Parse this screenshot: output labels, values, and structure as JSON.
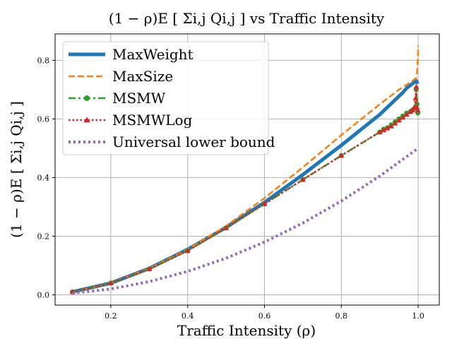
{
  "chart_data": {
    "type": "line",
    "title": "(1 − ρ)E [ Σi,j Qi,j ]  vs Traffic Intensity",
    "xlabel": "Traffic Intensity (ρ)",
    "ylabel": "(1 − ρ)E [ Σi,j Qi,j ]",
    "xlim": [
      0.055,
      1.055
    ],
    "ylim": [
      -0.035,
      0.89
    ],
    "x_ticks": [
      0.2,
      0.4,
      0.6,
      0.8,
      1.0
    ],
    "x_tick_labels": [
      "0.2",
      "0.4",
      "0.6",
      "0.8",
      "1.0"
    ],
    "y_ticks": [
      0.0,
      0.2,
      0.4,
      0.6,
      0.8
    ],
    "y_tick_labels": [
      "0.0",
      "0.2",
      "0.4",
      "0.6",
      "0.8"
    ],
    "grid": true,
    "legend_position": "top-left",
    "series": [
      {
        "name": "MaxWeight",
        "color": "#1f77b4",
        "style": "solid-thick",
        "x": [
          0.1,
          0.2,
          0.3,
          0.4,
          0.5,
          0.6,
          0.7,
          0.8,
          0.9,
          0.92,
          0.94,
          0.96,
          0.97,
          0.98,
          0.985,
          0.99,
          0.993,
          0.995,
          0.997,
          0.999
        ],
        "y": [
          0.01,
          0.04,
          0.09,
          0.155,
          0.23,
          0.315,
          0.41,
          0.51,
          0.615,
          0.64,
          0.665,
          0.69,
          0.705,
          0.715,
          0.72,
          0.725,
          0.728,
          0.73,
          0.725,
          0.72
        ]
      },
      {
        "name": "MaxSize",
        "color": "#ff7f0e",
        "style": "dashed",
        "x": [
          0.1,
          0.2,
          0.3,
          0.4,
          0.5,
          0.6,
          0.7,
          0.8,
          0.9,
          0.95,
          0.98,
          0.99,
          0.995,
          0.997,
          0.999,
          1.0
        ],
        "y": [
          0.01,
          0.04,
          0.09,
          0.155,
          0.235,
          0.33,
          0.435,
          0.545,
          0.65,
          0.7,
          0.725,
          0.735,
          0.74,
          0.76,
          0.8,
          0.85
        ]
      },
      {
        "name": "MSMW",
        "color": "#2ca02c",
        "style": "dash-dot-circle",
        "x": [
          0.1,
          0.2,
          0.3,
          0.4,
          0.5,
          0.6,
          0.7,
          0.8,
          0.9,
          0.91,
          0.92,
          0.93,
          0.94,
          0.95,
          0.96,
          0.97,
          0.98,
          0.985,
          0.99,
          0.993,
          0.995,
          0.997,
          0.999
        ],
        "y": [
          0.01,
          0.04,
          0.088,
          0.15,
          0.228,
          0.31,
          0.393,
          0.475,
          0.555,
          0.565,
          0.57,
          0.58,
          0.59,
          0.6,
          0.61,
          0.62,
          0.625,
          0.63,
          0.635,
          0.64,
          0.7,
          0.65,
          0.62
        ]
      },
      {
        "name": "MSMWLog",
        "color": "#d62728",
        "style": "dotted-triangle",
        "x": [
          0.1,
          0.2,
          0.3,
          0.4,
          0.5,
          0.6,
          0.7,
          0.8,
          0.9,
          0.91,
          0.92,
          0.93,
          0.94,
          0.95,
          0.96,
          0.97,
          0.98,
          0.985,
          0.99,
          0.993,
          0.995,
          0.997,
          0.999
        ],
        "y": [
          0.01,
          0.04,
          0.088,
          0.15,
          0.228,
          0.31,
          0.393,
          0.475,
          0.555,
          0.562,
          0.568,
          0.575,
          0.585,
          0.595,
          0.605,
          0.615,
          0.625,
          0.63,
          0.64,
          0.67,
          0.71,
          0.64,
          0.63
        ]
      },
      {
        "name": "Universal lower bound",
        "color": "#9467bd",
        "style": "dotted-thick",
        "x": [
          0.1,
          0.2,
          0.3,
          0.4,
          0.5,
          0.6,
          0.7,
          0.8,
          0.9,
          1.0
        ],
        "y": [
          0.005,
          0.02,
          0.045,
          0.08,
          0.125,
          0.18,
          0.245,
          0.32,
          0.405,
          0.5
        ]
      }
    ]
  }
}
